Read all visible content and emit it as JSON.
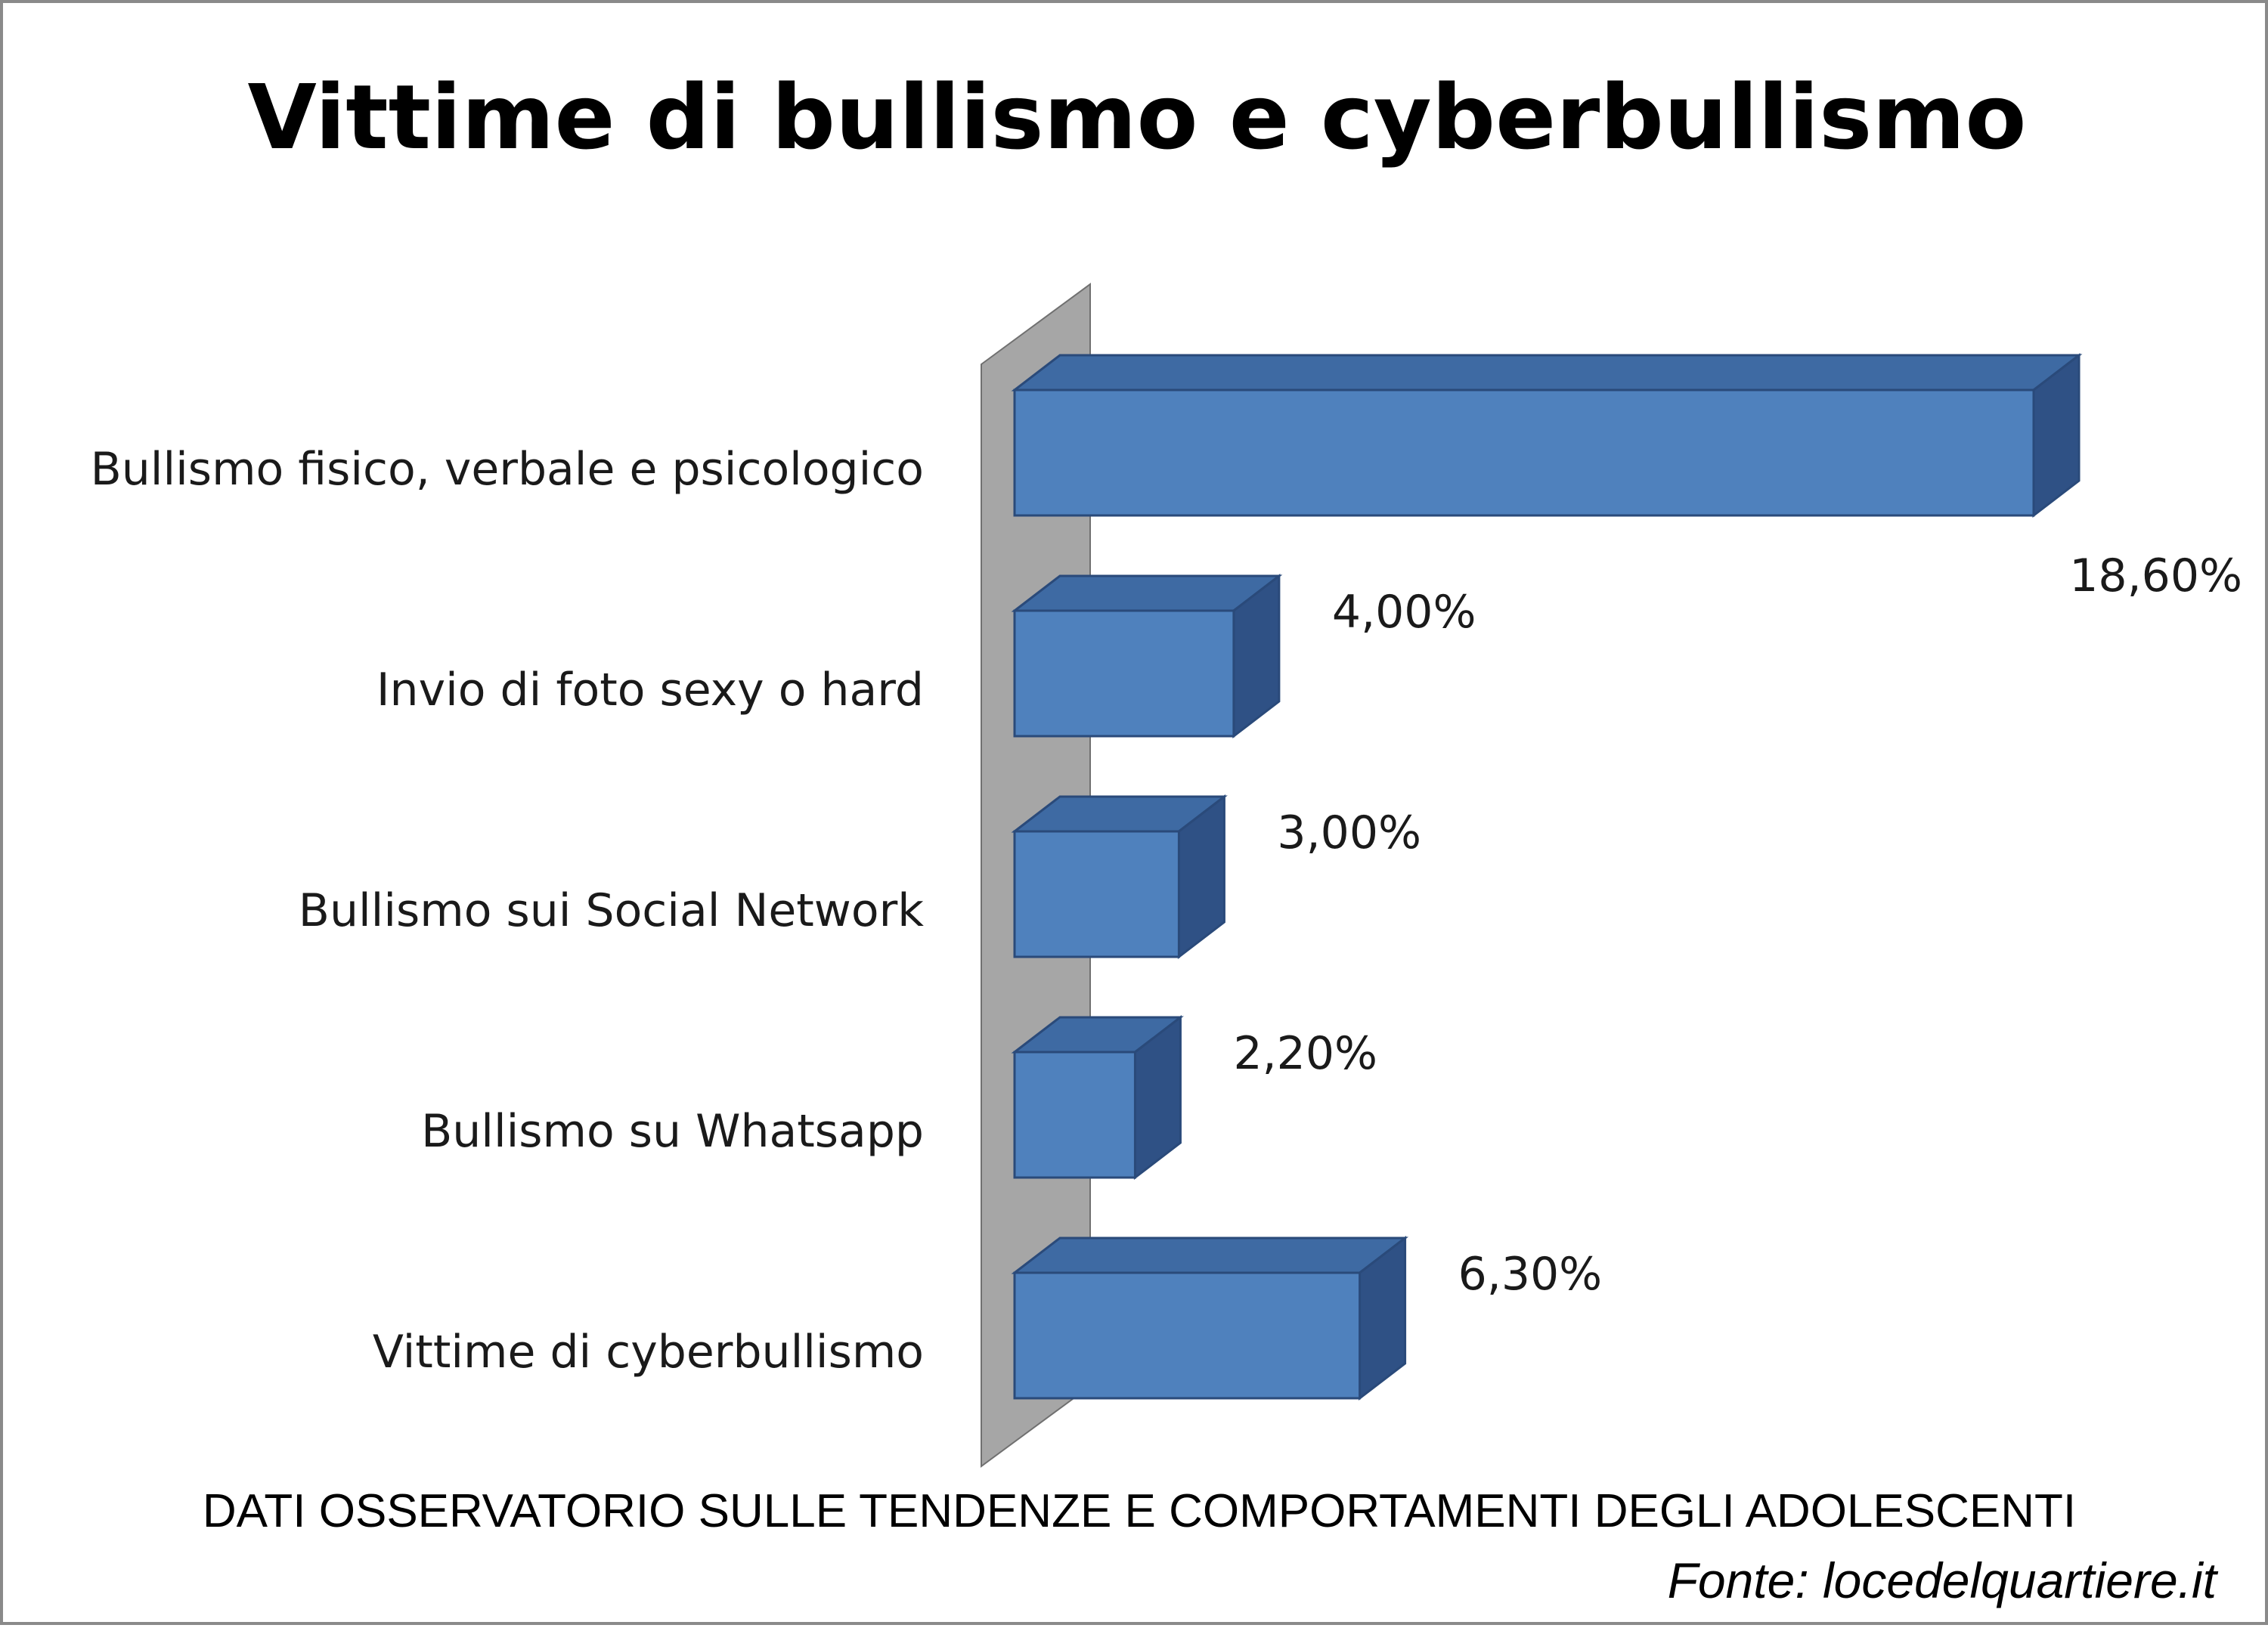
{
  "chart_data": {
    "type": "bar",
    "orientation": "horizontal",
    "style": "3d",
    "title": "Vittime di bullismo e cyberbullismo",
    "categories": [
      "Bullismo fisico, verbale e psicologico",
      "Invio di foto sexy o hard",
      "Bullismo sui Social Network",
      "Bullismo su Whatsapp",
      "Vittime di cyberbullismo"
    ],
    "values": [
      18.6,
      4.0,
      3.0,
      2.2,
      6.3
    ],
    "value_labels": [
      "18,60%",
      "4,00%",
      "3,00%",
      "2,20%",
      "6,30%"
    ],
    "unit": "%",
    "grid": false,
    "legend": "none",
    "colors": {
      "bar_front": "#4F81BD",
      "bar_top": "#3E6AA3",
      "bar_side": "#2F5185",
      "bar_edge": "#2A4A7A",
      "wall": "#A6A6A6"
    }
  },
  "caption": "DATI OSSERVATORIO SULLE TENDENZE E COMPORTAMENTI DEGLI ADOLESCENTI",
  "source": "Fonte: locedelquartiere.it"
}
